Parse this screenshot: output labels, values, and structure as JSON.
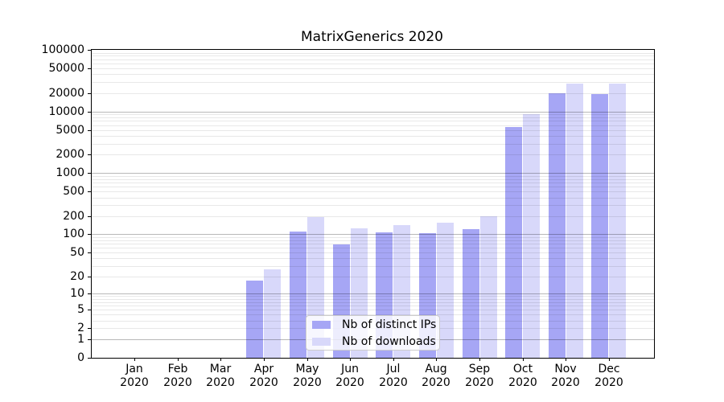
{
  "chart_data": {
    "type": "bar",
    "title": "MatrixGenerics 2020",
    "categories": [
      "Jan 2020",
      "Feb 2020",
      "Mar 2020",
      "Apr 2020",
      "May 2020",
      "Jun 2020",
      "Jul 2020",
      "Aug 2020",
      "Sep 2020",
      "Oct 2020",
      "Nov 2020",
      "Dec 2020"
    ],
    "series": [
      {
        "name": "Nb of distinct IPs",
        "color": "#a6a6f5",
        "values": [
          0,
          0,
          0,
          17,
          111,
          69,
          107,
          104,
          121,
          5500,
          20000,
          19000
        ]
      },
      {
        "name": "Nb of downloads",
        "color": "#d8d8fa",
        "values": [
          0,
          0,
          0,
          26,
          190,
          126,
          140,
          157,
          196,
          9000,
          28500,
          28000
        ]
      }
    ],
    "yscale": "log1p",
    "ylim": [
      0,
      100000
    ],
    "yticks": [
      0,
      1,
      2,
      5,
      10,
      20,
      50,
      100,
      200,
      500,
      1000,
      2000,
      5000,
      10000,
      20000,
      50000,
      100000
    ],
    "grid": "both",
    "grid_major_color": "#b3b3b3",
    "grid_minor_color": "#e8e8e8",
    "legend_position": "lower-center",
    "xlabel": "",
    "ylabel": ""
  }
}
